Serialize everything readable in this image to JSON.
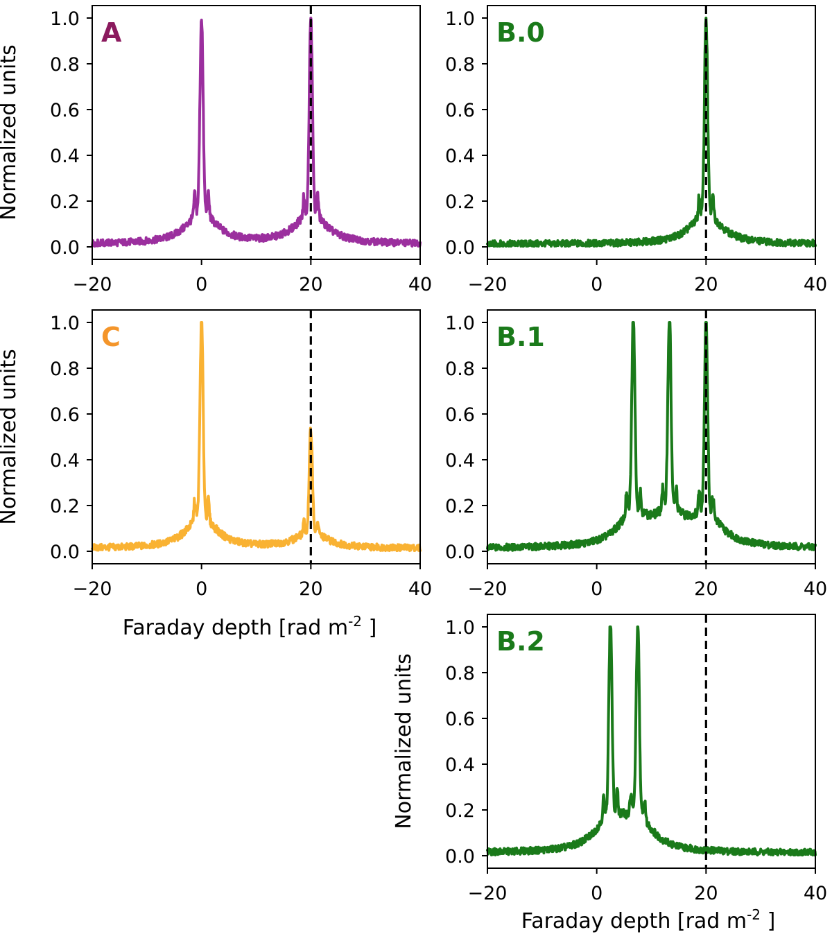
{
  "figure": {
    "description_free": true
  },
  "chart_data": [
    {
      "id": "A",
      "type": "line",
      "panel_label": "A",
      "color": "#9b2f9e",
      "label_color": "#8b1a5e",
      "peaks": [
        {
          "x": 0,
          "amp": 1.0
        },
        {
          "x": 20,
          "amp": 1.0
        }
      ],
      "xlim": [
        -20,
        40
      ],
      "ylim": [
        0,
        1.0
      ],
      "xticks": [
        "−20",
        "0",
        "20",
        "40"
      ],
      "xtick_values": [
        -20,
        0,
        20,
        40
      ],
      "yticks": [
        "0.0",
        "0.2",
        "0.4",
        "0.6",
        "0.8",
        "1.0"
      ],
      "ytick_values": [
        0,
        0.2,
        0.4,
        0.6,
        0.8,
        1.0
      ],
      "dashed_x": 20,
      "ylabel": "Normalized units",
      "xlabel": ""
    },
    {
      "id": "B0",
      "type": "line",
      "panel_label": "B.0",
      "color": "#1a7a1a",
      "label_color": "#1a7a1a",
      "peaks": [
        {
          "x": 20,
          "amp": 1.0
        }
      ],
      "xlim": [
        -20,
        40
      ],
      "ylim": [
        0,
        1.0
      ],
      "xticks": [
        "−20",
        "0",
        "20",
        "40"
      ],
      "xtick_values": [
        -20,
        0,
        20,
        40
      ],
      "yticks": [
        "0.0",
        "0.2",
        "0.4",
        "0.6",
        "0.8",
        "1.0"
      ],
      "ytick_values": [
        0,
        0.2,
        0.4,
        0.6,
        0.8,
        1.0
      ],
      "dashed_x": 20,
      "ylabel": "",
      "xlabel": ""
    },
    {
      "id": "C",
      "type": "line",
      "panel_label": "C",
      "color": "#f9b233",
      "label_color": "#f4952a",
      "peaks": [
        {
          "x": 0,
          "amp": 1.0
        },
        {
          "x": 20,
          "amp": 0.52
        }
      ],
      "xlim": [
        -20,
        40
      ],
      "ylim": [
        0,
        1.0
      ],
      "xticks": [
        "−20",
        "0",
        "20",
        "40"
      ],
      "xtick_values": [
        -20,
        0,
        20,
        40
      ],
      "yticks": [
        "0.0",
        "0.2",
        "0.4",
        "0.6",
        "0.8",
        "1.0"
      ],
      "ytick_values": [
        0,
        0.2,
        0.4,
        0.6,
        0.8,
        1.0
      ],
      "dashed_x": 20,
      "ylabel": "Normalized units",
      "xlabel": "Faraday depth [rad m",
      "xlabel_sup": "-2"
    },
    {
      "id": "B1",
      "type": "line",
      "panel_label": "B.1",
      "color": "#1a7a1a",
      "label_color": "#1a7a1a",
      "peaks": [
        {
          "x": 6.7,
          "amp": 1.0
        },
        {
          "x": 13.3,
          "amp": 0.98
        },
        {
          "x": 20,
          "amp": 0.99
        }
      ],
      "xlim": [
        -20,
        40
      ],
      "ylim": [
        0,
        1.0
      ],
      "xticks": [
        "−20",
        "0",
        "20",
        "40"
      ],
      "xtick_values": [
        -20,
        0,
        20,
        40
      ],
      "yticks": [
        "0.0",
        "0.2",
        "0.4",
        "0.6",
        "0.8",
        "1.0"
      ],
      "ytick_values": [
        0,
        0.2,
        0.4,
        0.6,
        0.8,
        1.0
      ],
      "dashed_x": 20,
      "ylabel": "",
      "xlabel": ""
    },
    {
      "id": "B2",
      "type": "line",
      "panel_label": "B.2",
      "color": "#1a7a1a",
      "label_color": "#1a7a1a",
      "peaks": [
        {
          "x": 2.5,
          "amp": 1.0
        },
        {
          "x": 7.5,
          "amp": 0.97
        }
      ],
      "xlim": [
        -20,
        40
      ],
      "ylim": [
        0,
        1.0
      ],
      "xticks": [
        "−20",
        "0",
        "20",
        "40"
      ],
      "xtick_values": [
        -20,
        0,
        20,
        40
      ],
      "yticks": [
        "0.0",
        "0.2",
        "0.4",
        "0.6",
        "0.8",
        "1.0"
      ],
      "ytick_values": [
        0,
        0.2,
        0.4,
        0.6,
        0.8,
        1.0
      ],
      "dashed_x": 20,
      "ylabel": "Normalized units",
      "xlabel": "Faraday depth [rad m",
      "xlabel_sup": "-2"
    }
  ]
}
